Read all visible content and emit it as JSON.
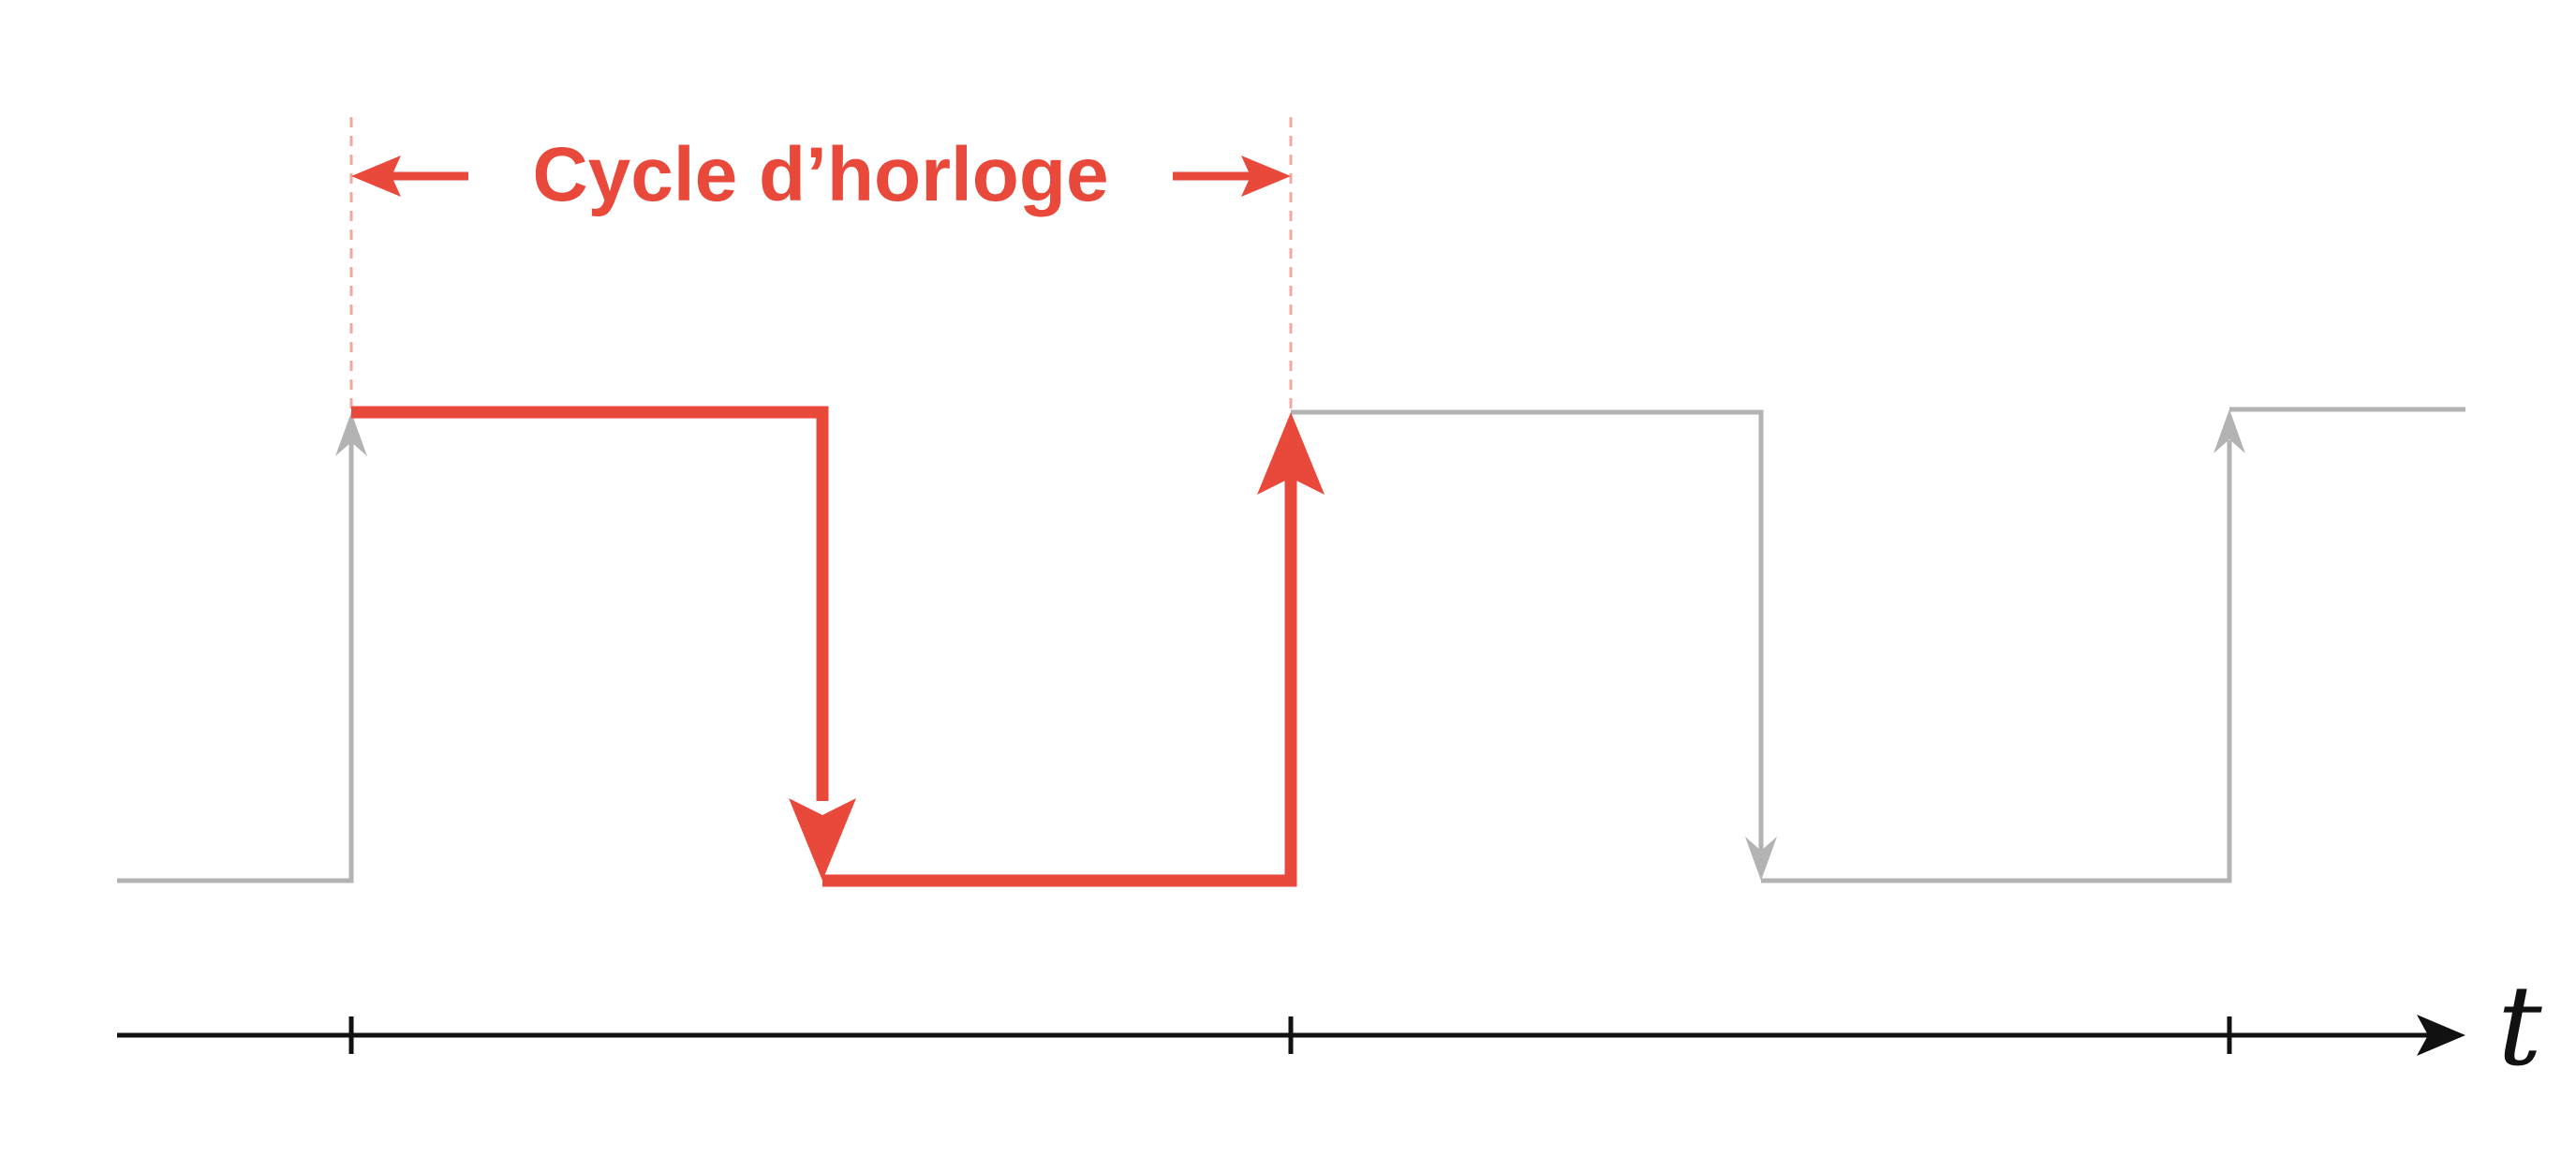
{
  "diagram": {
    "cycle_label": "Cycle d’horloge",
    "axis_label": "t"
  },
  "colors": {
    "highlight": "#E8493B",
    "highlight_guide": "#F4A79E",
    "signal": "#B3B3B3",
    "axis": "#111111",
    "background": "#FFFFFF"
  }
}
